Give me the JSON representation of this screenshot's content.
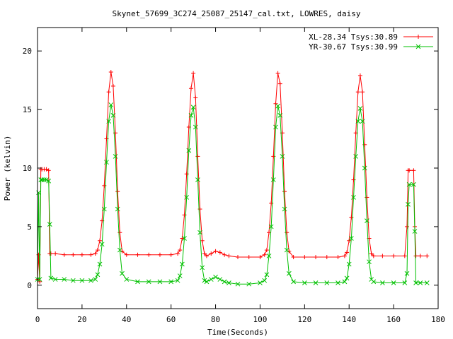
{
  "chart_data": {
    "type": "line",
    "title": "Skynet_57699_3C274_25087_25147_cal.txt, LOWRES, daisy",
    "xlabel": "Time(Seconds)",
    "ylabel": "Power (kelvin)",
    "xlim": [
      0,
      180
    ],
    "ylim": [
      -2,
      22
    ],
    "xticks": [
      "0",
      "20",
      "40",
      "60",
      "80",
      "100",
      "120",
      "140",
      "160",
      "180"
    ],
    "yticks": [
      "0",
      "5",
      "10",
      "15",
      "20"
    ],
    "grid": false,
    "legend_position": "top-right",
    "series": [
      {
        "name": "XL-28.34 Tsys:30.89",
        "color": "#ff0000",
        "marker": "plus",
        "x": [
          0,
          0.5,
          1,
          1.5,
          2,
          3,
          4,
          5,
          5.5,
          6,
          8,
          12,
          16,
          20,
          24,
          26,
          27,
          28,
          29,
          30,
          31,
          32,
          33,
          34,
          35,
          36,
          37,
          38,
          40,
          45,
          50,
          55,
          60,
          63,
          64,
          65,
          66,
          67,
          68,
          69,
          70,
          71,
          72,
          73,
          74,
          75,
          76,
          78,
          80,
          82,
          84,
          86,
          90,
          95,
          100,
          102,
          103,
          104,
          105,
          106,
          107,
          108,
          109,
          110,
          111,
          112,
          113,
          115,
          120,
          125,
          130,
          135,
          138,
          139,
          140,
          141,
          142,
          143,
          144,
          145,
          146,
          147,
          148,
          149,
          150,
          151,
          155,
          160,
          165,
          166,
          166.5,
          167,
          169,
          169.5,
          170,
          172,
          175
        ],
        "y": [
          0.5,
          2.6,
          0.3,
          9.9,
          9.9,
          9.9,
          9.9,
          9.8,
          2.7,
          2.7,
          2.7,
          2.6,
          2.6,
          2.6,
          2.6,
          2.7,
          3.0,
          3.8,
          5.5,
          8.5,
          12.5,
          16.5,
          18.2,
          17.0,
          13.0,
          8.0,
          4.5,
          2.9,
          2.6,
          2.6,
          2.6,
          2.6,
          2.6,
          2.7,
          3.0,
          4.0,
          6.0,
          9.5,
          13.5,
          16.8,
          18.1,
          16.0,
          11.0,
          6.5,
          3.8,
          2.7,
          2.5,
          2.7,
          2.9,
          2.8,
          2.6,
          2.5,
          2.4,
          2.4,
          2.4,
          2.6,
          3.0,
          4.5,
          7.0,
          11.0,
          15.5,
          18.1,
          17.2,
          13.0,
          8.0,
          4.5,
          2.9,
          2.4,
          2.4,
          2.4,
          2.4,
          2.4,
          2.5,
          2.8,
          3.8,
          5.8,
          9.0,
          13.0,
          16.5,
          17.9,
          16.5,
          12.0,
          7.5,
          4.0,
          2.7,
          2.5,
          2.5,
          2.5,
          2.5,
          5.0,
          9.8,
          9.8,
          9.8,
          5.0,
          2.5,
          2.5,
          2.5
        ]
      },
      {
        "name": "YR-30.67 Tsys:30.99",
        "color": "#00c000",
        "marker": "cross",
        "x": [
          0,
          0.5,
          1,
          1.5,
          2,
          3,
          4,
          5,
          5.5,
          6,
          8,
          12,
          16,
          20,
          24,
          26,
          27,
          28,
          29,
          30,
          31,
          32,
          33,
          34,
          35,
          36,
          37,
          38,
          40,
          45,
          50,
          55,
          60,
          63,
          64,
          65,
          66,
          67,
          68,
          69,
          70,
          71,
          72,
          73,
          74,
          75,
          76,
          78,
          80,
          82,
          84,
          86,
          90,
          95,
          100,
          102,
          103,
          104,
          105,
          106,
          107,
          108,
          109,
          110,
          111,
          112,
          113,
          115,
          120,
          125,
          130,
          135,
          138,
          139,
          140,
          141,
          142,
          143,
          144,
          145,
          146,
          147,
          148,
          149,
          150,
          151,
          155,
          160,
          165,
          166,
          166.5,
          167,
          169,
          169.5,
          170,
          172,
          175
        ],
        "y": [
          0.5,
          7.9,
          0.5,
          9.0,
          9.0,
          9.0,
          9.0,
          8.9,
          5.2,
          0.6,
          0.5,
          0.5,
          0.4,
          0.4,
          0.4,
          0.5,
          0.9,
          1.8,
          3.5,
          6.5,
          10.5,
          14.0,
          15.4,
          14.5,
          11.0,
          6.5,
          3.0,
          1.0,
          0.5,
          0.3,
          0.3,
          0.3,
          0.3,
          0.4,
          0.8,
          1.8,
          4.0,
          7.5,
          11.5,
          14.5,
          15.2,
          13.5,
          9.0,
          4.5,
          1.5,
          0.4,
          0.3,
          0.5,
          0.7,
          0.5,
          0.3,
          0.2,
          0.1,
          0.1,
          0.2,
          0.4,
          0.9,
          2.5,
          5.0,
          9.0,
          13.5,
          15.3,
          14.5,
          11.0,
          6.5,
          3.0,
          1.0,
          0.3,
          0.2,
          0.2,
          0.2,
          0.2,
          0.3,
          0.6,
          1.8,
          4.0,
          7.5,
          11.0,
          14.0,
          15.1,
          14.0,
          10.0,
          5.5,
          2.0,
          0.5,
          0.3,
          0.2,
          0.2,
          0.2,
          1.0,
          6.9,
          8.6,
          8.6,
          4.6,
          0.2,
          0.2,
          0.2
        ]
      }
    ]
  }
}
